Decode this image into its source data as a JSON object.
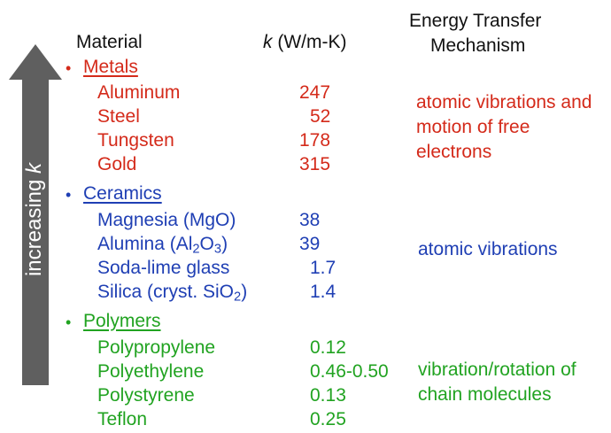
{
  "headers": {
    "material": "Material",
    "k_symbol": "k",
    "k_units": " (W/m-K)",
    "mechanism_line1": "Energy Transfer",
    "mechanism_line2": "Mechanism"
  },
  "arrow": {
    "text": "increasing ",
    "symbol": "k",
    "color": "#5f5f5f"
  },
  "colors": {
    "metals": "#d42a1a",
    "ceramics": "#1f3fb4",
    "polymers": "#21a321"
  },
  "categories": [
    {
      "name": "Metals",
      "mechanism": "atomic vibrations and motion of free electrons",
      "items": [
        {
          "material": "Aluminum",
          "k": "247"
        },
        {
          "material": "Steel",
          "k": "52"
        },
        {
          "material": "Tungsten",
          "k": "178"
        },
        {
          "material": "Gold",
          "k": "315"
        }
      ]
    },
    {
      "name": "Ceramics",
      "mechanism": "atomic vibrations",
      "items": [
        {
          "material": "Magnesia (MgO)",
          "k": "38"
        },
        {
          "material": "Alumina (Al2O3)",
          "k": "39"
        },
        {
          "material": "Soda-lime glass",
          "k": "1.7"
        },
        {
          "material": "Silica (cryst. SiO2)",
          "k": "1.4"
        }
      ]
    },
    {
      "name": "Polymers",
      "mechanism": "vibration/rotation of chain molecules",
      "items": [
        {
          "material": "Polypropylene",
          "k": "0.12"
        },
        {
          "material": "Polyethylene",
          "k": "0.46-0.50"
        },
        {
          "material": "Polystyrene",
          "k": "0.13"
        },
        {
          "material": "Teflon",
          "k": "0.25"
        }
      ]
    }
  ]
}
